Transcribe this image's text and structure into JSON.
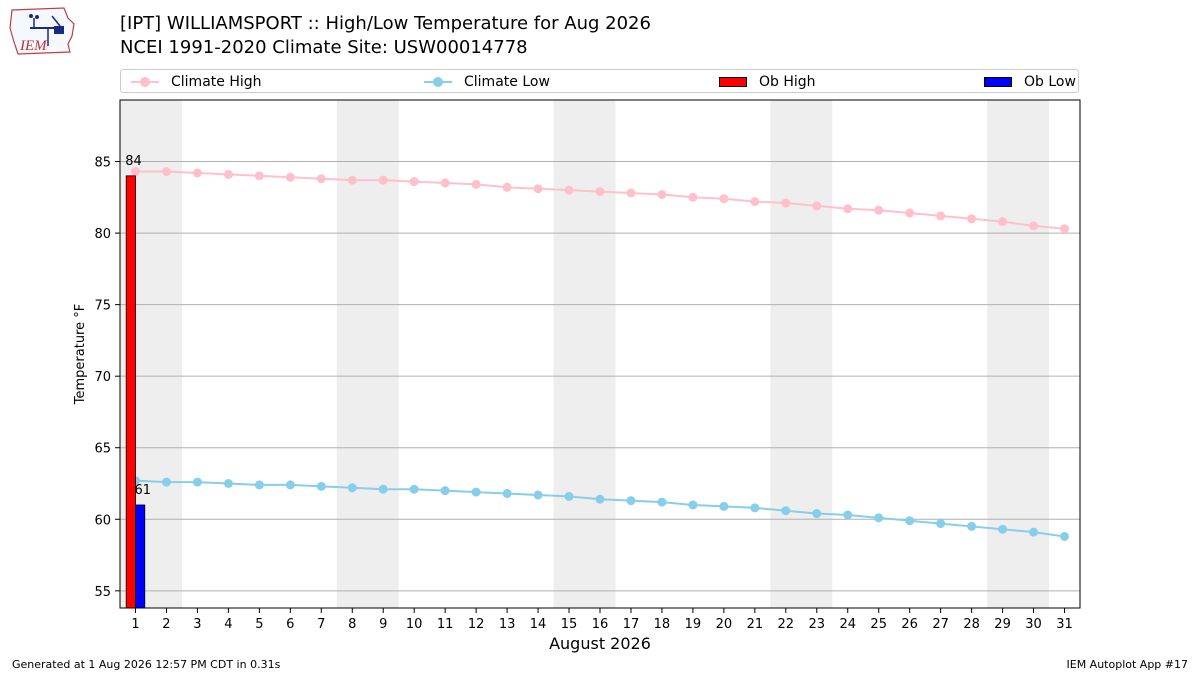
{
  "header": {
    "title_line1": "[IPT] WILLIAMSPORT :: High/Low Temperature for Aug 2026",
    "title_line2": "NCEI 1991-2020 Climate Site: USW00014778",
    "logo_text": "IEM"
  },
  "legend": {
    "climate_high": "Climate High",
    "climate_low": "Climate Low",
    "ob_high": "Ob High",
    "ob_low": "Ob Low"
  },
  "colors": {
    "climate_high": "#ffc0cb",
    "climate_low": "#87ceeb",
    "ob_high": "#ff0000",
    "ob_low": "#0000ff",
    "weekend_band": "#eeeeee",
    "grid": "#b0b0b0"
  },
  "footer": {
    "generated": "Generated at 1 Aug 2026 12:57 PM CDT in 0.31s",
    "app": "IEM Autoplot App #17"
  },
  "chart_data": {
    "type": "bar",
    "title": "[IPT] WILLIAMSPORT :: High/Low Temperature for Aug 2026",
    "subtitle": "NCEI 1991-2020 Climate Site: USW00014778",
    "xlabel": "August 2026",
    "ylabel": "Temperature °F",
    "x": [
      1,
      2,
      3,
      4,
      5,
      6,
      7,
      8,
      9,
      10,
      11,
      12,
      13,
      14,
      15,
      16,
      17,
      18,
      19,
      20,
      21,
      22,
      23,
      24,
      25,
      26,
      27,
      28,
      29,
      30,
      31
    ],
    "xlim": [
      0.5,
      31.5
    ],
    "ylim": [
      53.8,
      89.3
    ],
    "yticks": [
      55,
      60,
      65,
      70,
      75,
      80,
      85
    ],
    "grid": "horizontal",
    "weekend_bands": [
      [
        1,
        2
      ],
      [
        8,
        9
      ],
      [
        15,
        16
      ],
      [
        22,
        23
      ],
      [
        29,
        30
      ]
    ],
    "legend_position": "top",
    "series": [
      {
        "name": "Climate High",
        "kind": "line",
        "values": [
          84.3,
          84.3,
          84.2,
          84.1,
          84.0,
          83.9,
          83.8,
          83.7,
          83.7,
          83.6,
          83.5,
          83.4,
          83.2,
          83.1,
          83.0,
          82.9,
          82.8,
          82.7,
          82.5,
          82.4,
          82.2,
          82.1,
          81.9,
          81.7,
          81.6,
          81.4,
          81.2,
          81.0,
          80.8,
          80.5,
          80.3
        ]
      },
      {
        "name": "Climate Low",
        "kind": "line",
        "values": [
          62.7,
          62.6,
          62.6,
          62.5,
          62.4,
          62.4,
          62.3,
          62.2,
          62.1,
          62.1,
          62.0,
          61.9,
          61.8,
          61.7,
          61.6,
          61.4,
          61.3,
          61.2,
          61.0,
          60.9,
          60.8,
          60.6,
          60.4,
          60.3,
          60.1,
          59.9,
          59.7,
          59.5,
          59.3,
          59.1,
          58.8
        ]
      },
      {
        "name": "Ob High",
        "kind": "bar",
        "x": [
          1
        ],
        "values": [
          84
        ],
        "labels": [
          "84"
        ]
      },
      {
        "name": "Ob Low",
        "kind": "bar",
        "x": [
          1
        ],
        "values": [
          61
        ],
        "labels": [
          "61"
        ]
      }
    ]
  }
}
